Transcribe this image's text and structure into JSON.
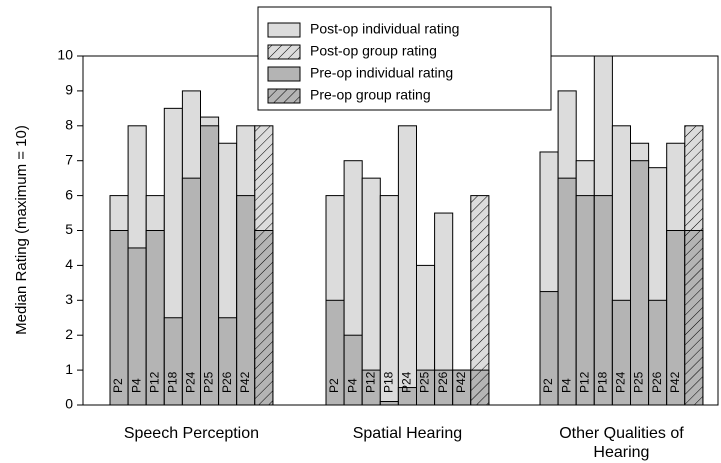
{
  "chart_data": {
    "type": "bar",
    "ylabel": "Median Rating (maximum = 10)",
    "groups": [
      "Speech Perception",
      "Spatial Hearing",
      "Other Qualities of Hearing"
    ],
    "participants": [
      "P2",
      "P4",
      "P12",
      "P18",
      "P24",
      "P25",
      "P26",
      "P42"
    ],
    "series": [
      {
        "name": "Post-op individual rating",
        "color": "#dcdcdc",
        "hatch": false,
        "values": [
          [
            6,
            8,
            6,
            8.5,
            9,
            8.25,
            7.5,
            8
          ],
          [
            6,
            7,
            6.5,
            6,
            8,
            4,
            5.5,
            1
          ],
          [
            7.25,
            9,
            7,
            10,
            8,
            7.5,
            6.8,
            7.5
          ]
        ]
      },
      {
        "name": "Post-op group rating",
        "color": "#dcdcdc",
        "hatch": true,
        "values": [
          8,
          6,
          8
        ]
      },
      {
        "name": "Pre-op individual rating",
        "color": "#b4b4b4",
        "hatch": false,
        "values": [
          [
            5,
            4.5,
            5,
            2.5,
            6.5,
            8,
            2.5,
            6
          ],
          [
            3,
            2,
            1,
            0.1,
            0.5,
            1,
            1,
            1
          ],
          [
            3.25,
            6.5,
            6,
            6,
            3,
            7,
            3,
            5
          ]
        ]
      },
      {
        "name": "Pre-op group rating",
        "color": "#b4b4b4",
        "hatch": true,
        "values": [
          5,
          1,
          5
        ]
      }
    ],
    "ylim": [
      0,
      10
    ],
    "yticks": [
      0,
      1,
      2,
      3,
      4,
      5,
      6,
      7,
      8,
      9,
      10
    ]
  }
}
